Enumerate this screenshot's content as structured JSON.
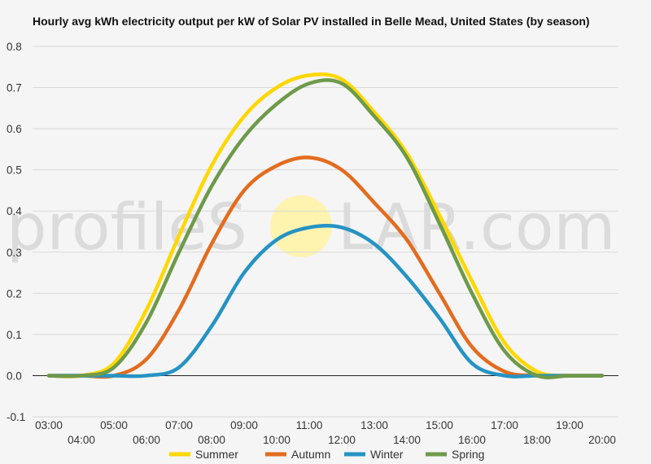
{
  "chart_data": {
    "type": "line",
    "title": "Hourly avg kWh electricity output per kW of Solar PV installed in Belle Mead, United States (by season)",
    "xlabel": "",
    "ylabel": "",
    "x": [
      "03:00",
      "04:00",
      "05:00",
      "06:00",
      "07:00",
      "08:00",
      "09:00",
      "10:00",
      "11:00",
      "12:00",
      "13:00",
      "14:00",
      "15:00",
      "16:00",
      "17:00",
      "18:00",
      "19:00",
      "20:00"
    ],
    "ylim": [
      -0.1,
      0.8
    ],
    "yticks": [
      "0.8",
      "0.7",
      "0.6",
      "0.5",
      "0.4",
      "0.3",
      "0.2",
      "0.1",
      "0.0",
      "-0.1"
    ],
    "grid": true,
    "legend": "bottom",
    "series": [
      {
        "name": "Summer",
        "color": "#FFD700",
        "values": [
          0.0,
          0.0,
          0.03,
          0.16,
          0.34,
          0.51,
          0.63,
          0.7,
          0.73,
          0.72,
          0.64,
          0.54,
          0.39,
          0.23,
          0.08,
          0.01,
          0.0,
          0.0
        ]
      },
      {
        "name": "Autumn",
        "color": "#E36C1F",
        "values": [
          0.0,
          0.0,
          0.0,
          0.04,
          0.16,
          0.32,
          0.45,
          0.51,
          0.53,
          0.5,
          0.42,
          0.33,
          0.2,
          0.07,
          0.01,
          0.0,
          0.0,
          0.0
        ]
      },
      {
        "name": "Winter",
        "color": "#2693C4",
        "values": [
          0.0,
          0.0,
          0.0,
          0.0,
          0.02,
          0.12,
          0.25,
          0.33,
          0.36,
          0.36,
          0.32,
          0.24,
          0.14,
          0.03,
          0.0,
          0.0,
          0.0,
          0.0
        ]
      },
      {
        "name": "Spring",
        "color": "#6E9A4B",
        "values": [
          0.0,
          0.0,
          0.02,
          0.13,
          0.3,
          0.46,
          0.58,
          0.66,
          0.71,
          0.71,
          0.63,
          0.53,
          0.37,
          0.2,
          0.06,
          0.0,
          0.0,
          0.0
        ]
      }
    ]
  },
  "watermark": {
    "left": "profileS",
    "right": "LAR.com",
    "sun_color": "#FFF3B0"
  }
}
